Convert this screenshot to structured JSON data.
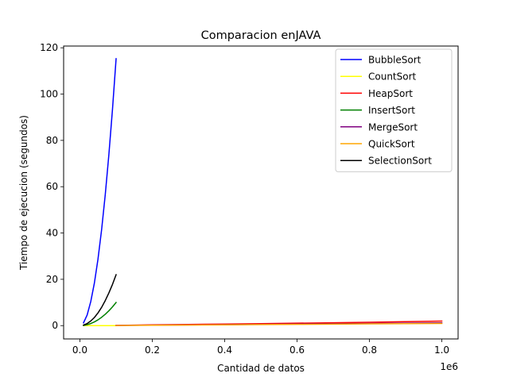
{
  "chart_data": {
    "type": "line",
    "title": "Comparacion enJAVA",
    "xlabel": "Cantidad de datos",
    "ylabel": "Tiempo de ejecucion (segundos)",
    "x_offset_label": "1e6",
    "xlim": [
      -45000,
      1045000
    ],
    "ylim": [
      -5.75,
      120.75
    ],
    "x_ticks": [
      0,
      200000,
      400000,
      600000,
      800000,
      1000000
    ],
    "x_tick_labels": [
      "0.0",
      "0.2",
      "0.4",
      "0.6",
      "0.8",
      "1.0"
    ],
    "y_ticks": [
      0,
      20,
      40,
      60,
      80,
      100,
      120
    ],
    "y_tick_labels": [
      "0",
      "20",
      "40",
      "60",
      "80",
      "100",
      "120"
    ],
    "grid": false,
    "legend_position": "top-right",
    "series": [
      {
        "name": "BubbleSort",
        "color": "#0000ff",
        "x": [
          10000,
          20000,
          30000,
          40000,
          50000,
          60000,
          70000,
          80000,
          90000,
          100000
        ],
        "y": [
          1.2,
          4.6,
          10.4,
          18.4,
          28.8,
          41.5,
          56.5,
          73.8,
          93.4,
          115.3
        ]
      },
      {
        "name": "CountSort",
        "color": "#ffff00",
        "x": [
          10000,
          20000,
          30000,
          40000,
          50000,
          60000,
          70000,
          80000,
          90000,
          100000
        ],
        "y": [
          0.01,
          0.01,
          0.01,
          0.01,
          0.01,
          0.01,
          0.01,
          0.01,
          0.01,
          0.01
        ]
      },
      {
        "name": "HeapSort",
        "color": "#ff0000",
        "x": [
          100000,
          200000,
          300000,
          400000,
          500000,
          600000,
          700000,
          800000,
          900000,
          1000000
        ],
        "y": [
          0.1,
          0.35,
          0.5,
          0.7,
          0.85,
          1.05,
          1.25,
          1.45,
          1.7,
          1.95
        ]
      },
      {
        "name": "InsertSort",
        "color": "#008000",
        "x": [
          10000,
          20000,
          30000,
          40000,
          50000,
          60000,
          70000,
          80000,
          90000,
          100000
        ],
        "y": [
          0.1,
          0.4,
          0.9,
          1.6,
          2.5,
          3.6,
          4.9,
          6.4,
          8.1,
          10.0
        ]
      },
      {
        "name": "MergeSort",
        "color": "#800080",
        "x": [
          100000,
          200000,
          300000,
          400000,
          500000,
          600000,
          700000,
          800000,
          900000,
          1000000
        ],
        "y": [
          0.08,
          0.2,
          0.3,
          0.42,
          0.55,
          0.68,
          0.8,
          0.92,
          1.05,
          1.18
        ]
      },
      {
        "name": "QuickSort",
        "color": "#ffa500",
        "x": [
          100000,
          200000,
          300000,
          400000,
          500000,
          600000,
          700000,
          800000,
          900000,
          1000000
        ],
        "y": [
          0.05,
          0.15,
          0.25,
          0.35,
          0.45,
          0.55,
          0.65,
          0.75,
          0.85,
          0.95
        ]
      },
      {
        "name": "SelectionSort",
        "color": "#000000",
        "x": [
          10000,
          20000,
          30000,
          40000,
          50000,
          60000,
          70000,
          80000,
          90000,
          100000
        ],
        "y": [
          0.22,
          0.9,
          2.0,
          3.5,
          5.5,
          7.9,
          10.8,
          14.1,
          17.8,
          22.0
        ]
      }
    ]
  }
}
